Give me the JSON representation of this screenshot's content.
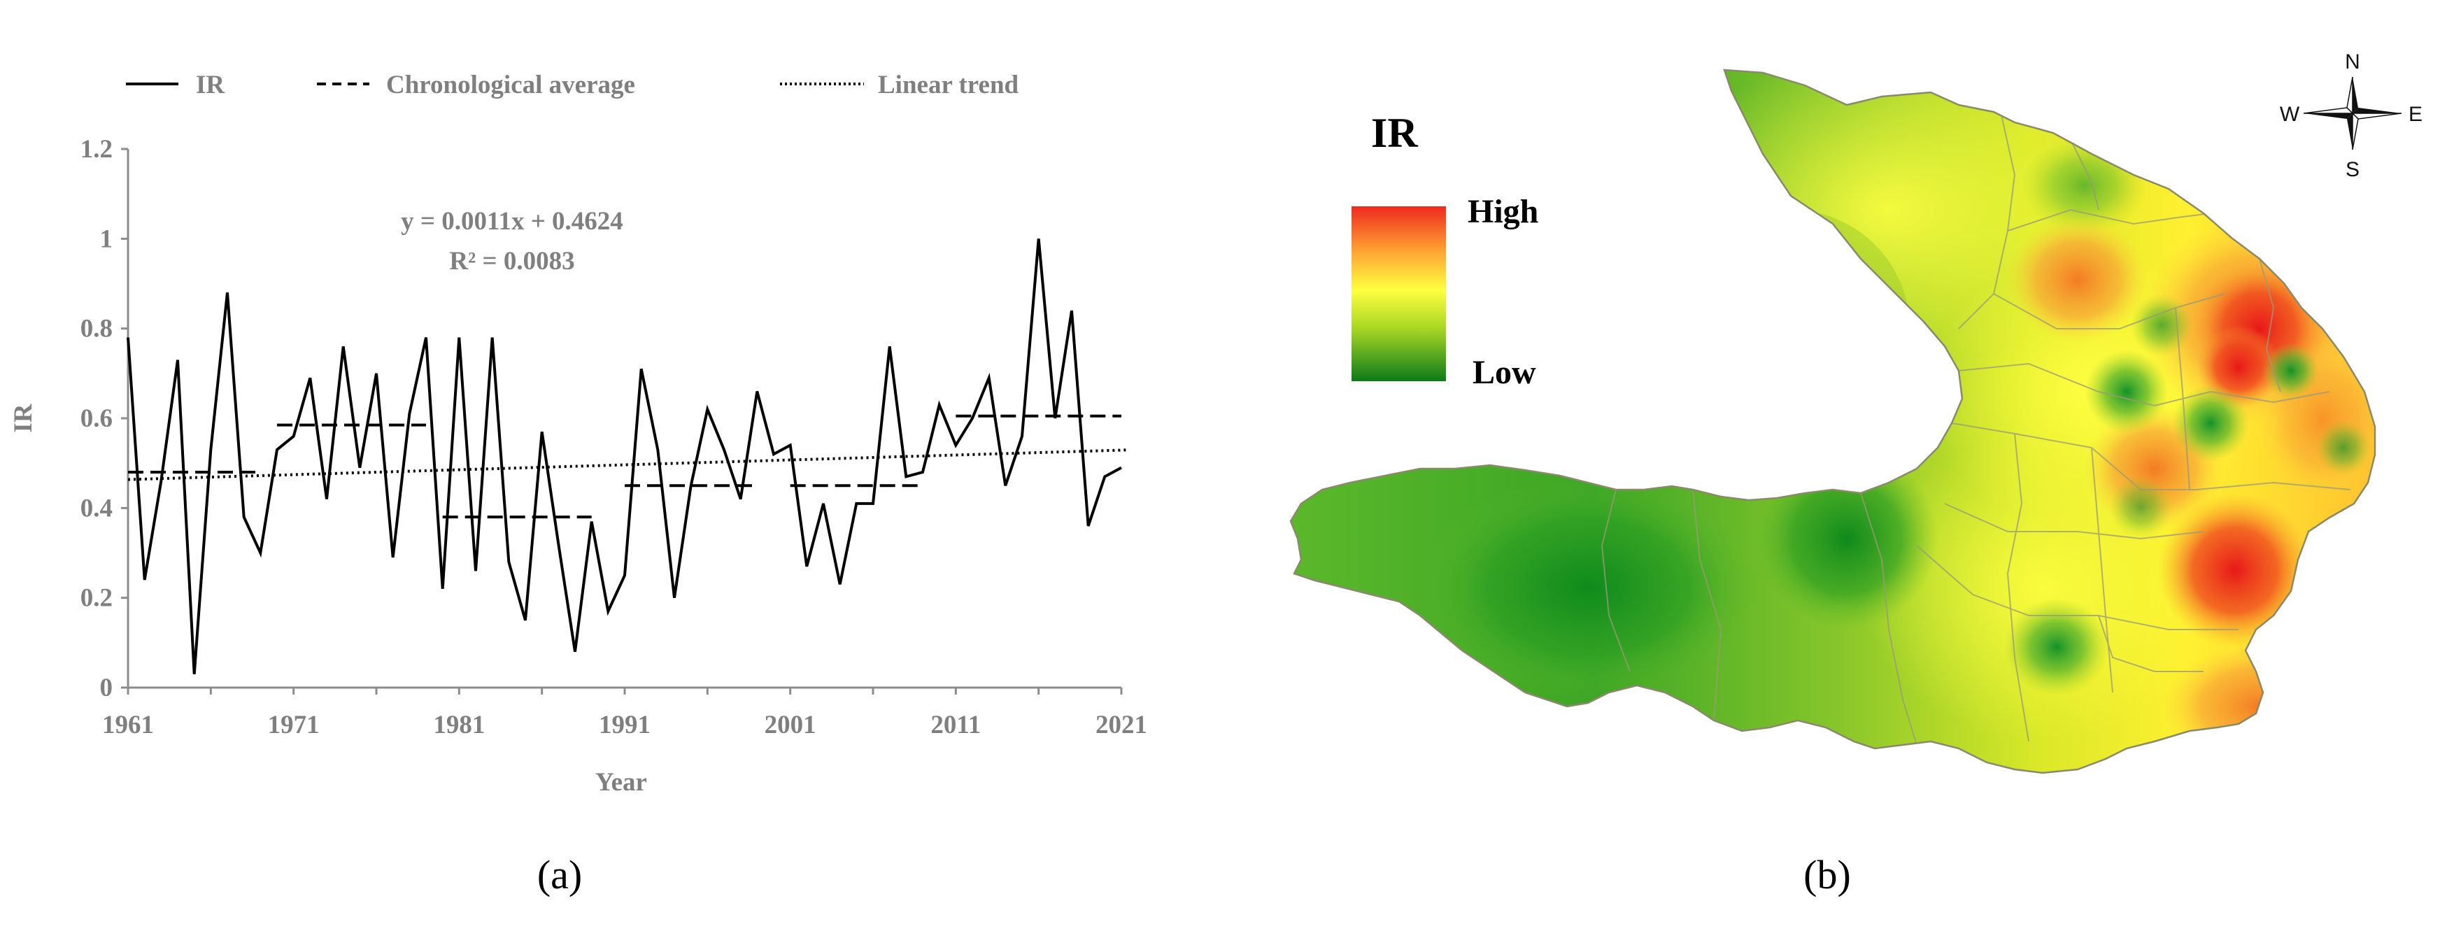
{
  "chart_data": {
    "type": "line",
    "legend": {
      "placement": "top",
      "entries": [
        {
          "label": "IR",
          "style": "solid"
        },
        {
          "label": "Chronological average",
          "style": "dashed"
        },
        {
          "label": "Linear trend",
          "style": "dotted"
        }
      ]
    },
    "xlabel": "Year",
    "ylabel": "IR",
    "xlim": [
      1961,
      2021
    ],
    "ylim": [
      0,
      1.2
    ],
    "x_ticks": [
      "1961",
      "1971",
      "1981",
      "1991",
      "2001",
      "2011",
      "2021"
    ],
    "y_ticks": [
      "0",
      "0.2",
      "0.4",
      "0.6",
      "0.8",
      "1",
      "1.2"
    ],
    "grid": false,
    "series": [
      {
        "name": "IR",
        "x": [
          1961,
          1962,
          1963,
          1964,
          1965,
          1966,
          1967,
          1968,
          1969,
          1970,
          1971,
          1972,
          1973,
          1974,
          1975,
          1976,
          1977,
          1978,
          1979,
          1980,
          1981,
          1982,
          1983,
          1984,
          1985,
          1986,
          1987,
          1988,
          1989,
          1990,
          1991,
          1992,
          1993,
          1994,
          1995,
          1996,
          1997,
          1998,
          1999,
          2000,
          2001,
          2002,
          2003,
          2004,
          2005,
          2006,
          2007,
          2008,
          2009,
          2010,
          2011,
          2012,
          2013,
          2014,
          2015,
          2016,
          2017,
          2018,
          2019,
          2020,
          2021
        ],
        "values": [
          0.78,
          0.24,
          0.46,
          0.73,
          0.03,
          0.53,
          0.88,
          0.38,
          0.3,
          0.53,
          0.56,
          0.69,
          0.42,
          0.76,
          0.49,
          0.7,
          0.29,
          0.61,
          0.78,
          0.22,
          0.78,
          0.26,
          0.78,
          0.28,
          0.15,
          0.57,
          0.32,
          0.08,
          0.37,
          0.17,
          0.25,
          0.71,
          0.53,
          0.2,
          0.45,
          0.62,
          0.53,
          0.42,
          0.66,
          0.52,
          0.54,
          0.27,
          0.41,
          0.23,
          0.41,
          0.41,
          0.76,
          0.47,
          0.48,
          0.63,
          0.54,
          0.6,
          0.69,
          0.45,
          0.56,
          1.0,
          0.6,
          0.84,
          0.36,
          0.47,
          0.49
        ]
      },
      {
        "name": "Chronological average",
        "segments": [
          {
            "x": [
              1961,
              1969
            ],
            "y": 0.48
          },
          {
            "x": [
              1970,
              1979
            ],
            "y": 0.585
          },
          {
            "x": [
              1980,
              1989
            ],
            "y": 0.38
          },
          {
            "x": [
              1991,
              1999
            ],
            "y": 0.45
          },
          {
            "x": [
              2001,
              2009
            ],
            "y": 0.45
          },
          {
            "x": [
              2011,
              2021
            ],
            "y": 0.605
          }
        ]
      },
      {
        "name": "Linear trend",
        "slope": 0.0011,
        "intercept": 0.4624
      }
    ],
    "annotations": [
      "y = 0.0011x + 0.4624",
      "R² = 0.0083"
    ]
  },
  "panel_labels": {
    "a": "(a)",
    "b": "(b)"
  },
  "map": {
    "legend_title": "IR",
    "legend_high": "High",
    "legend_low": "Low",
    "compass": {
      "n": "N",
      "s": "S",
      "e": "E",
      "w": "W"
    },
    "colors": {
      "high": "#e8281e",
      "mid": "#ffff33",
      "low": "#118d1a",
      "border": "#8a8a6a"
    }
  }
}
